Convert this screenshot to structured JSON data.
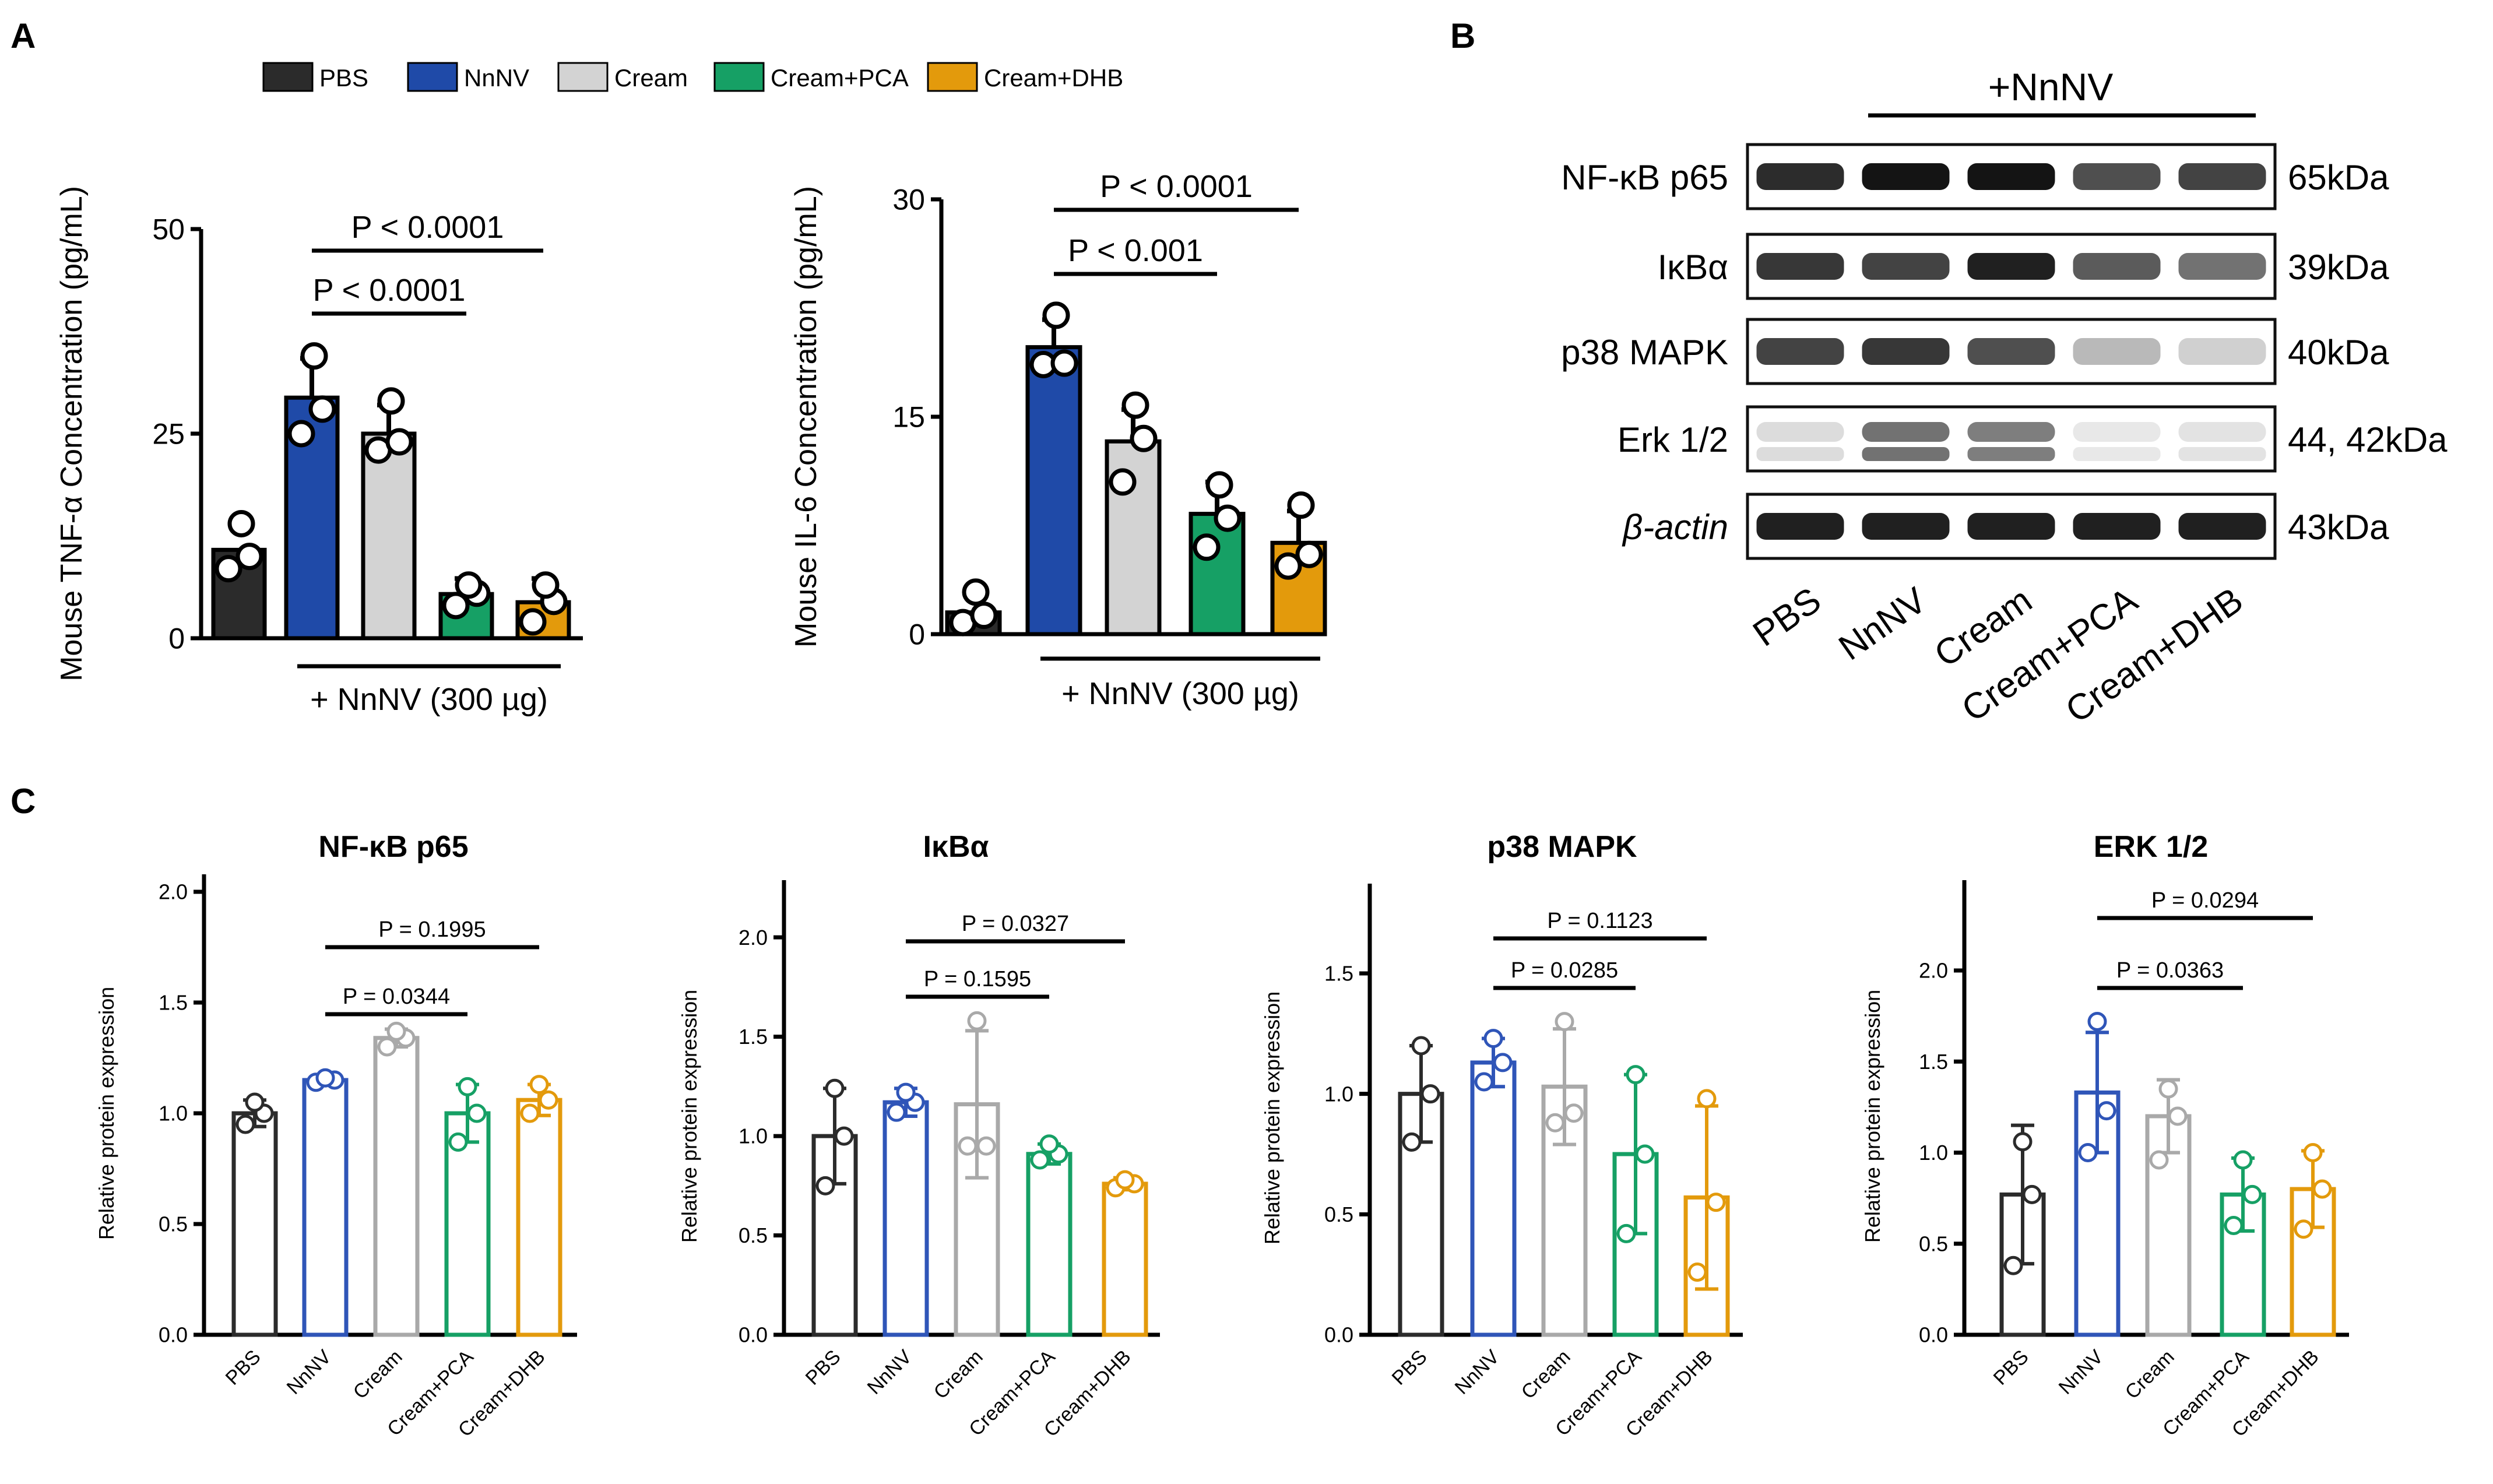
{
  "panel_labels": {
    "a": "A",
    "b": "B",
    "c": "C"
  },
  "legend": [
    {
      "label": "PBS",
      "color": "#2b2b2b"
    },
    {
      "label": "NnNV",
      "color": "#1f4aa8"
    },
    {
      "label": "Cream",
      "color": "#d3d3d3"
    },
    {
      "label": "Cream+PCA",
      "color": "#16a065"
    },
    {
      "label": "Cream+DHB",
      "color": "#e39a0c"
    }
  ],
  "chart_data": [
    {
      "id": "tnf",
      "type": "bar",
      "style": "filled",
      "ylabel": "Mouse  TNF-α Concentration (pg/mL)",
      "ylim": [
        0,
        50
      ],
      "yticks": [
        0,
        25,
        50
      ],
      "categories": [
        "PBS",
        "NnNV",
        "Cream",
        "Cream+PCA",
        "Cream+DHB"
      ],
      "values": [
        10.8,
        29.4,
        25.0,
        5.4,
        4.4
      ],
      "errors": [
        null,
        4.8,
        3.5,
        1.9,
        2.9
      ],
      "points": [
        [
          8.5,
          10,
          14
        ],
        [
          25,
          28,
          34.5
        ],
        [
          23,
          24,
          29
        ],
        [
          4,
          5.5,
          6.5
        ],
        [
          2,
          4.5,
          6.5
        ]
      ],
      "group_label": "+ NnNV (300 µg)",
      "comparisons": [
        {
          "label": "P < 0.0001",
          "from": 1,
          "to": 4
        },
        {
          "label": "P < 0.0001",
          "from": 1,
          "to": 3
        }
      ]
    },
    {
      "id": "il6",
      "type": "bar",
      "style": "filled",
      "ylabel": "Mouse IL-6 Concentration (pg/mL)",
      "ylim": [
        0,
        30
      ],
      "yticks": [
        0,
        15,
        30
      ],
      "categories": [
        "PBS",
        "NnNV",
        "Cream",
        "Cream+PCA",
        "Cream+DHB"
      ],
      "values": [
        1.5,
        19.8,
        13.3,
        8.3,
        6.3
      ],
      "errors": [
        null,
        1.9,
        2.2,
        2.2,
        2.2
      ],
      "points": [
        [
          0.8,
          1.3,
          2.9
        ],
        [
          18.6,
          18.7,
          22.0
        ],
        [
          10.5,
          13.5,
          15.8
        ],
        [
          6.0,
          8.0,
          10.3
        ],
        [
          4.7,
          5.5,
          8.9
        ]
      ],
      "group_label": "+ NnNV (300 µg)",
      "comparisons": [
        {
          "label": "P < 0.0001",
          "from": 1,
          "to": 4
        },
        {
          "label": "P < 0.001",
          "from": 1,
          "to": 3
        }
      ]
    },
    {
      "id": "nfkb",
      "type": "bar",
      "style": "outline",
      "title": "NF-κB p65",
      "ylabel": "Relative protein expression",
      "ylim": [
        0,
        2.0
      ],
      "yticks": [
        "0.0",
        "0.5",
        "1.0",
        "1.5",
        "2.0"
      ],
      "categories": [
        "PBS",
        "NnNV",
        "Cream",
        "Cream+PCA",
        "Cream+DHB"
      ],
      "values": [
        1.0,
        1.15,
        1.34,
        1.0,
        1.06
      ],
      "errors": [
        0.06,
        0.02,
        0.04,
        0.13,
        0.07
      ],
      "points": [
        [
          0.95,
          1.0,
          1.05
        ],
        [
          1.14,
          1.15,
          1.16
        ],
        [
          1.3,
          1.34,
          1.37
        ],
        [
          0.87,
          1.0,
          1.12
        ],
        [
          1.0,
          1.06,
          1.13
        ]
      ],
      "comparisons": [
        {
          "label": "P = 0.1995",
          "from": 1,
          "to": 4
        },
        {
          "label": "P = 0.0344",
          "from": 1,
          "to": 3
        }
      ]
    },
    {
      "id": "ikba",
      "type": "bar",
      "style": "outline",
      "title": "IκBα",
      "ylabel": "Relative protein expression",
      "ylim": [
        0,
        2.2
      ],
      "yticks": [
        "0.0",
        "0.5",
        "1.0",
        "1.5",
        "2.0"
      ],
      "categories": [
        "PBS",
        "NnNV",
        "Cream",
        "Cream+PCA",
        "Cream+DHB"
      ],
      "values": [
        1.0,
        1.17,
        1.16,
        0.91,
        0.76
      ],
      "errors": [
        0.24,
        0.07,
        0.37,
        0.05,
        0.03
      ],
      "points": [
        [
          0.75,
          1.0,
          1.24
        ],
        [
          1.12,
          1.17,
          1.22
        ],
        [
          0.95,
          0.95,
          1.58
        ],
        [
          0.88,
          0.91,
          0.96
        ],
        [
          0.74,
          0.76,
          0.78
        ]
      ],
      "comparisons": [
        {
          "label": "P = 0.0327",
          "from": 1,
          "to": 4
        },
        {
          "label": "P = 0.1595",
          "from": 1,
          "to": 3
        }
      ]
    },
    {
      "id": "p38",
      "type": "bar",
      "style": "outline",
      "title": "p38 MAPK",
      "ylabel": "Relative protein expression",
      "ylim": [
        0,
        1.8
      ],
      "yticks": [
        "0.0",
        "0.5",
        "1.0",
        "1.5"
      ],
      "categories": [
        "PBS",
        "NnNV",
        "Cream",
        "Cream+PCA",
        "Cream+DHB"
      ],
      "values": [
        1.0,
        1.13,
        1.03,
        0.75,
        0.57
      ],
      "errors": [
        0.2,
        0.1,
        0.24,
        0.33,
        0.38
      ],
      "points": [
        [
          0.8,
          1.0,
          1.2
        ],
        [
          1.05,
          1.13,
          1.23
        ],
        [
          0.88,
          0.92,
          1.3
        ],
        [
          0.42,
          0.75,
          1.08
        ],
        [
          0.26,
          0.55,
          0.98
        ]
      ],
      "comparisons": [
        {
          "label": "P = 0.1123",
          "from": 1,
          "to": 4
        },
        {
          "label": "P = 0.0285",
          "from": 1,
          "to": 3
        }
      ]
    },
    {
      "id": "erk",
      "type": "bar",
      "style": "outline",
      "title": "ERK 1/2",
      "ylabel": "Relative protein expression",
      "ylim": [
        0,
        2.4
      ],
      "yticks": [
        "0.0",
        "0.5",
        "1.0",
        "1.5",
        "2.0"
      ],
      "categories": [
        "PBS",
        "NnNV",
        "Cream",
        "Cream+PCA",
        "Cream+DHB"
      ],
      "values": [
        0.77,
        1.33,
        1.2,
        0.77,
        0.8
      ],
      "errors": [
        0.38,
        0.33,
        0.2,
        0.2,
        0.21
      ],
      "points": [
        [
          0.38,
          0.77,
          1.06
        ],
        [
          1.0,
          1.23,
          1.72
        ],
        [
          0.96,
          1.2,
          1.35
        ],
        [
          0.6,
          0.77,
          0.96
        ],
        [
          0.58,
          0.8,
          1.0
        ]
      ],
      "comparisons": [
        {
          "label": "P = 0.0294",
          "from": 1,
          "to": 4
        },
        {
          "label": "P = 0.0363",
          "from": 1,
          "to": 3
        }
      ]
    }
  ],
  "blot": {
    "group_label": "+NnNV",
    "lanes": [
      "PBS",
      "NnNV",
      "Cream",
      "Cream+PCA",
      "Cream+DHB"
    ],
    "rows": [
      {
        "protein": "NF-κB p65",
        "protein_italic": false,
        "size": "65kDa",
        "intensities": [
          0.9,
          1.0,
          1.0,
          0.75,
          0.8
        ]
      },
      {
        "protein": "IκBα",
        "protein_italic": false,
        "size": "39kDa",
        "intensities": [
          0.85,
          0.8,
          0.95,
          0.7,
          0.6
        ]
      },
      {
        "protein": "p38 MAPK",
        "protein_italic": false,
        "size": "40kDa",
        "intensities": [
          0.8,
          0.85,
          0.75,
          0.3,
          0.2
        ]
      },
      {
        "protein": "Erk 1/2",
        "protein_italic": false,
        "size": "44, 42kDa",
        "intensities": [
          0.15,
          0.6,
          0.55,
          0.1,
          0.12
        ]
      },
      {
        "protein": "β-actin",
        "protein_italic": true,
        "size": "43kDa",
        "intensities": [
          0.95,
          0.95,
          0.95,
          0.95,
          0.95
        ]
      }
    ]
  }
}
